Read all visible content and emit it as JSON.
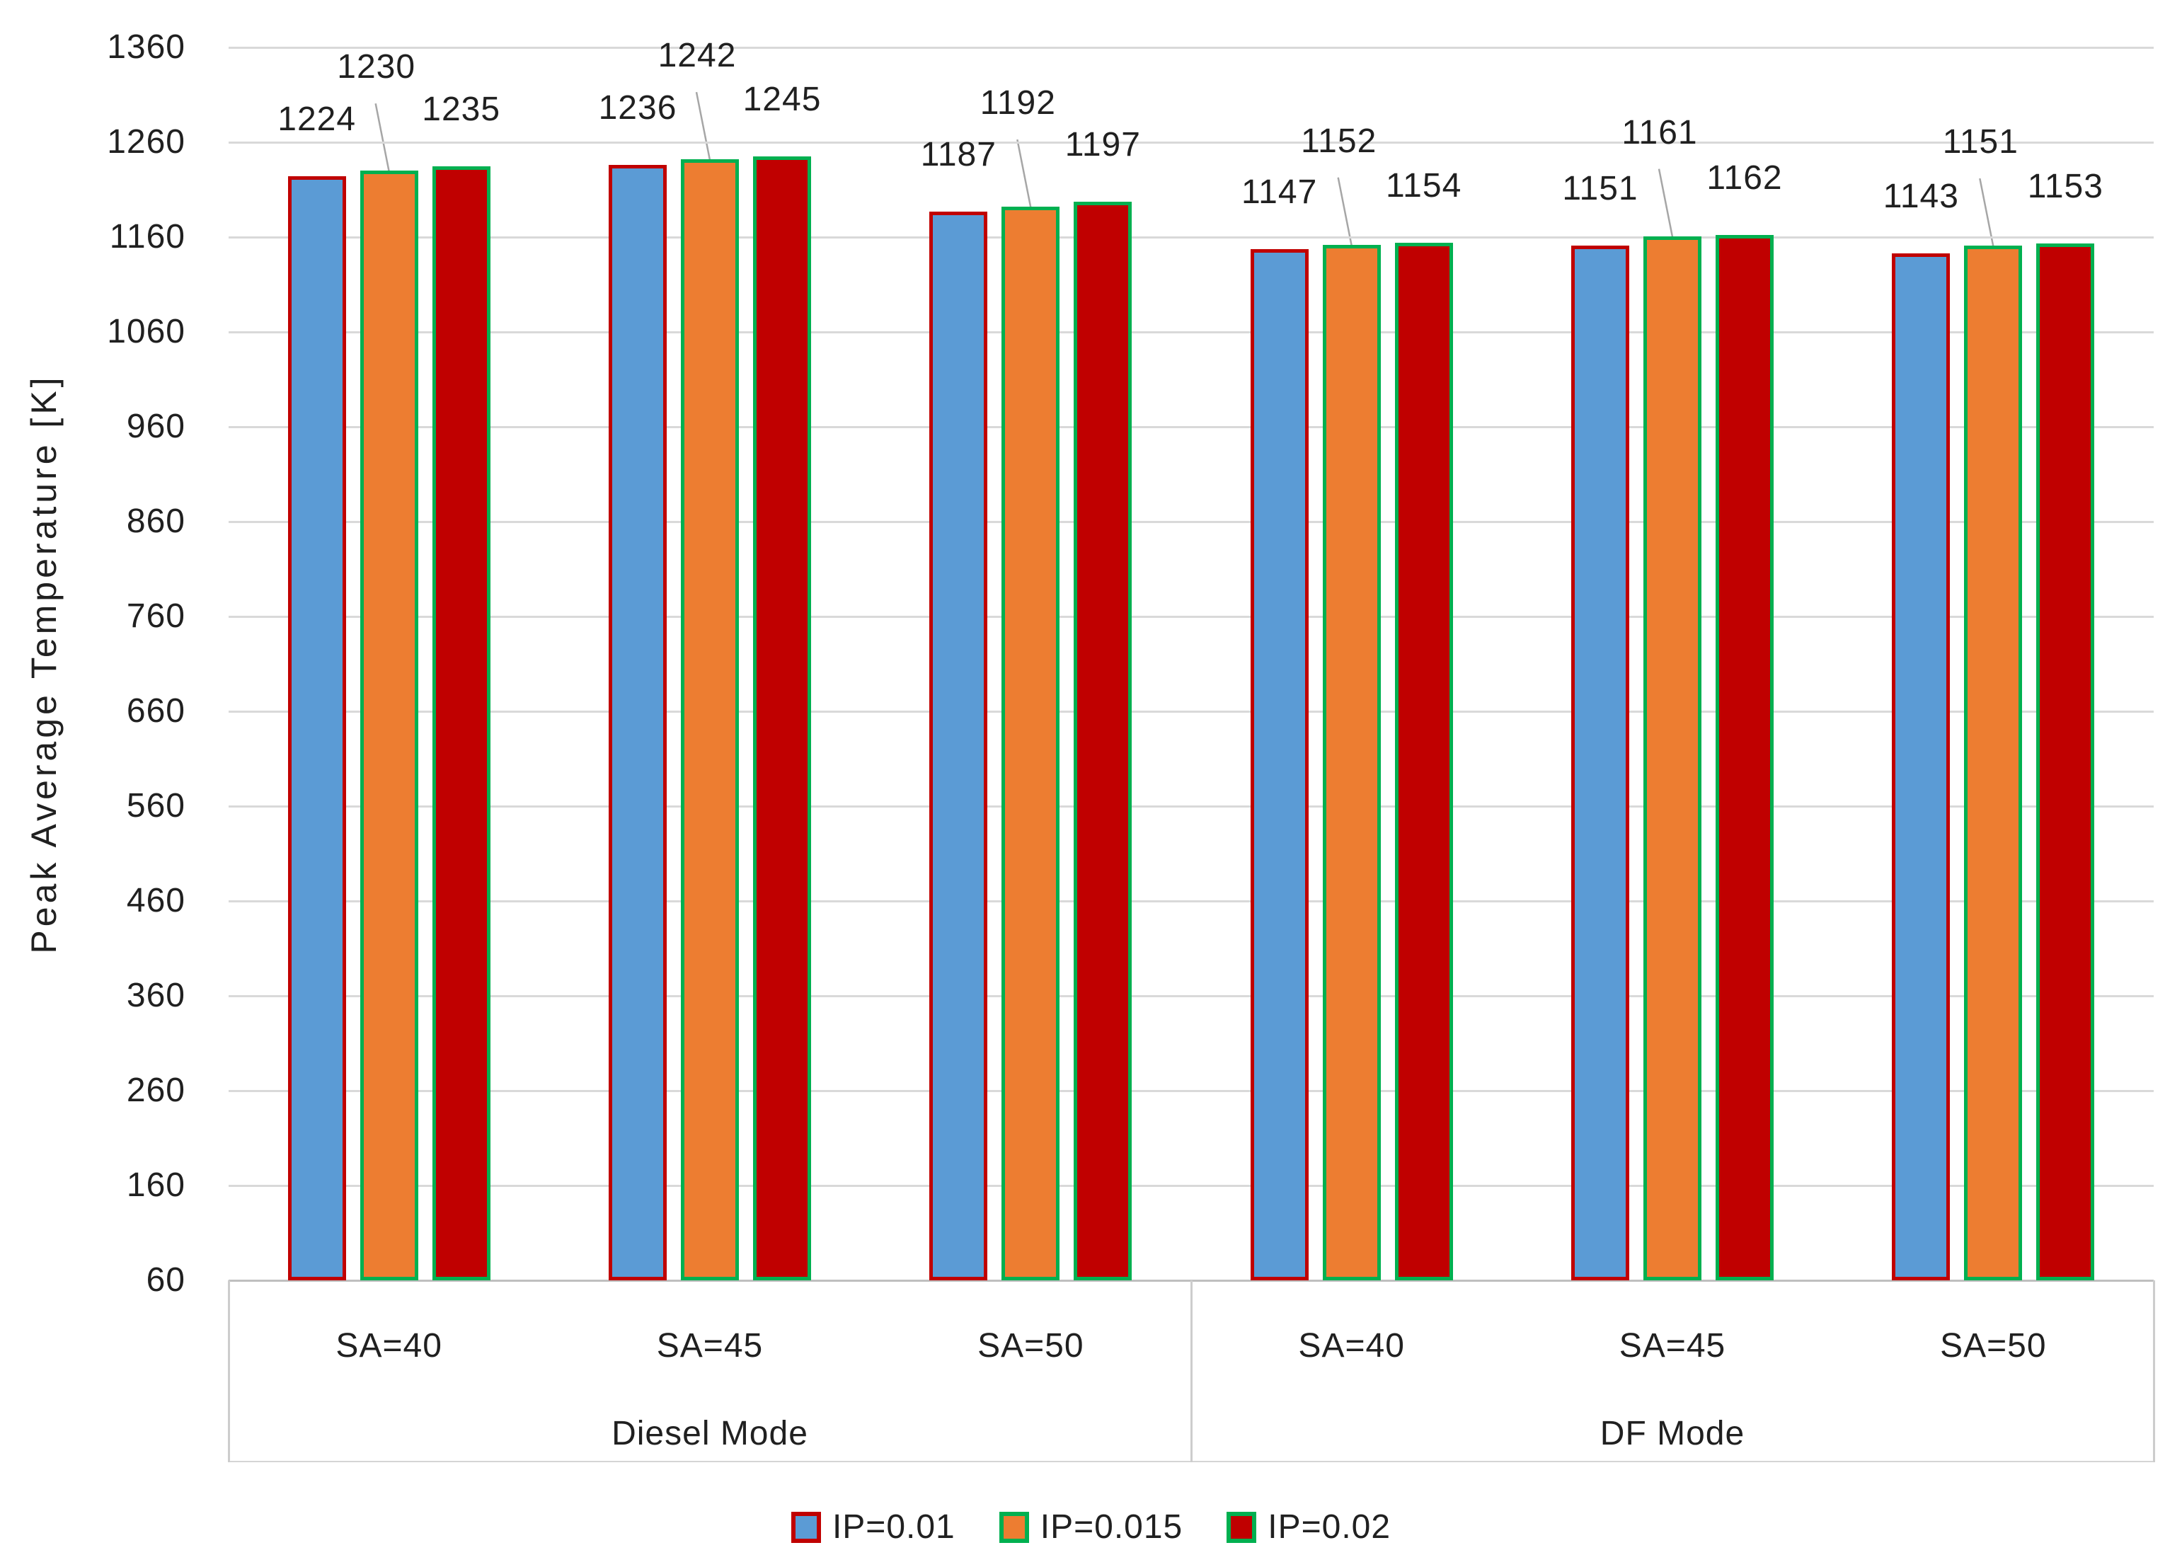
{
  "page": {
    "background": "#ffffff"
  },
  "chart_data": {
    "type": "bar",
    "title": "",
    "ylabel": "Peak Average Temperature [K]",
    "ylim": [
      60,
      1360
    ],
    "ytick_interval": 100,
    "yticks": [
      60,
      160,
      260,
      360,
      460,
      560,
      660,
      760,
      860,
      960,
      1060,
      1160,
      1260,
      1360
    ],
    "grid": true,
    "legend_position": "bottom",
    "axis_groups": [
      {
        "label": "Diesel Mode",
        "categories": [
          "SA=40",
          "SA=45",
          "SA=50"
        ]
      },
      {
        "label": "DF Mode",
        "categories": [
          "SA=40",
          "SA=45",
          "SA=50"
        ]
      }
    ],
    "categories_flat": [
      "SA=40",
      "SA=45",
      "SA=50",
      "SA=40",
      "SA=45",
      "SA=50"
    ],
    "series": [
      {
        "name": "IP=0.01",
        "fill": "#5B9BD5",
        "border": "#C00000",
        "values": [
          1224,
          1236,
          1187,
          1147,
          1151,
          1143
        ]
      },
      {
        "name": "IP=0.015",
        "fill": "#ED7D31",
        "border": "#00B050",
        "values": [
          1230,
          1242,
          1192,
          1152,
          1161,
          1151
        ]
      },
      {
        "name": "IP=0.02",
        "fill": "#C00000",
        "border": "#00B050",
        "values": [
          1235,
          1245,
          1197,
          1154,
          1162,
          1153
        ]
      }
    ],
    "data_labels": true,
    "raised_label_series": "IP=0.015",
    "colors": {
      "gridline": "#D9D9D9",
      "axis_line": "#BFBFBF",
      "leader_line": "#A6A6A6",
      "text": "#202020"
    }
  }
}
